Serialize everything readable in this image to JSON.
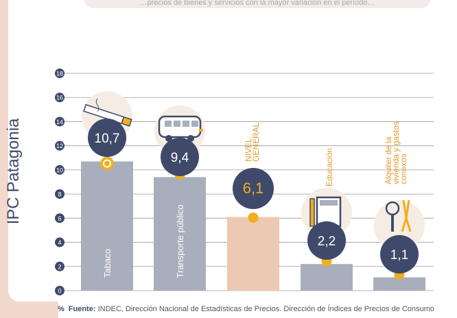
{
  "side_title": "IPC Patagonia",
  "top_note": "…precios de bienes y servicios con la mayor variación en el período…",
  "source": {
    "symbol": "%",
    "label": "Fuente:",
    "text": "INDEC, Dirección Nacional de Estadísticas de Precios. Dirección de Índices de Precios de Consumo"
  },
  "colors": {
    "bar": "#a9aebc",
    "bar_general": "#ecc9b3",
    "badge": "#3f4a6b",
    "badge_general": "#3f4a6b",
    "dot": "#f0ae1d",
    "grid": "#9a9a9a",
    "tick_circle": "#3f4a6b",
    "category_label": "#e39a2c",
    "icon_bg": "#f5ece4"
  },
  "chart_data": {
    "type": "bar",
    "title": "",
    "xlabel": "",
    "ylabel": "",
    "ylim": [
      0,
      18
    ],
    "yticks": [
      0,
      2,
      4,
      6,
      8,
      10,
      12,
      14,
      16,
      18
    ],
    "grid": true,
    "categories": [
      "Tabaco",
      "Transporte público",
      "NIVEL GENERAL",
      "Educación",
      "Alquiler de la vivienda y gastos conexos"
    ],
    "values": [
      10.7,
      9.4,
      6.1,
      2.2,
      1.1
    ],
    "value_labels": [
      "10,7",
      "9,4",
      "6,1",
      "2,2",
      "1,1"
    ],
    "category_label_position": [
      "inside",
      "inside",
      "above",
      "above",
      "above"
    ],
    "icons": [
      "cigarette-icon",
      "bus-icon",
      "",
      "notebook-pencil-icon",
      "keys-pliers-icon"
    ]
  }
}
